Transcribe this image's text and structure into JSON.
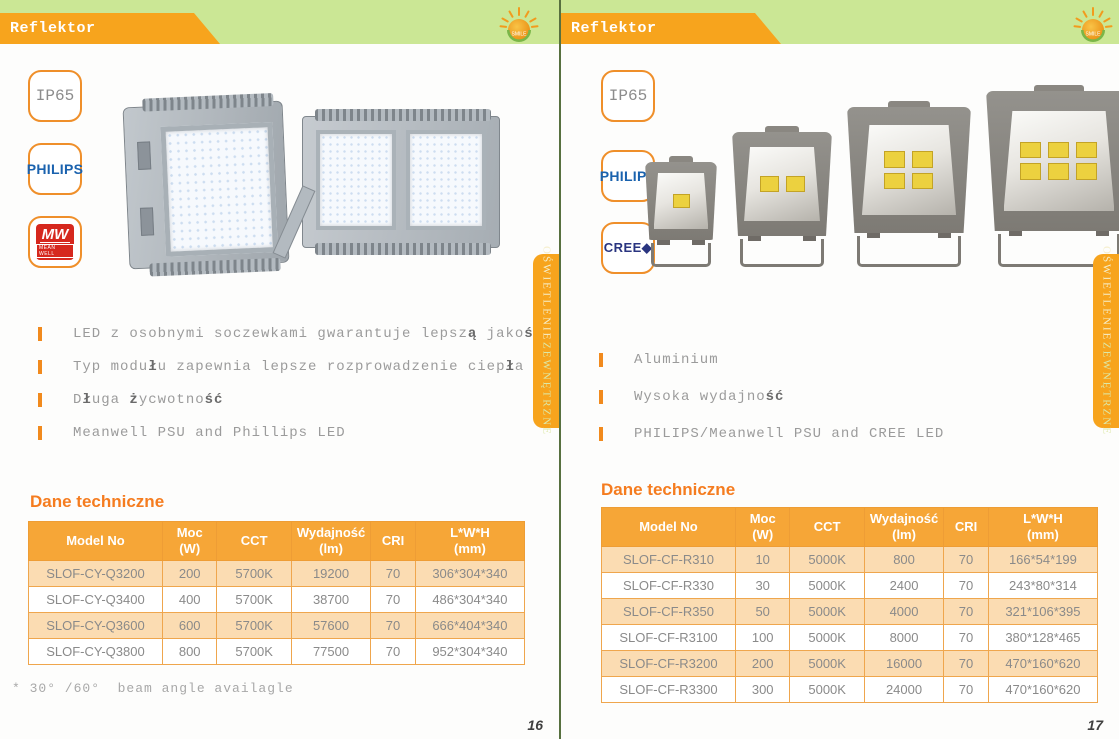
{
  "colors": {
    "header_green": "#cbe795",
    "banner_orange": "#f7a41d",
    "table_header_orange": "#f6a637",
    "row_peach": "#fbdcb2",
    "accent_orange": "#f57c1f",
    "divider_green": "#57703f",
    "philips_blue": "#1a62ae",
    "meanwell_red": "#d6281e",
    "cree_navy": "#2a3580",
    "led_chip_yellow": "#ecd13f"
  },
  "pages": [
    {
      "header": {
        "title": "Reflektor",
        "logo_text": "SMILE"
      },
      "badges": {
        "ip": "IP65",
        "brand1": "PHILIPS",
        "brand2": "MW",
        "brand2_sub": "MEAN WELL"
      },
      "bullets": [
        "LED z osobnymi soczewkami gwarantuje lepszą jakość",
        "Typ modułu zapewnia lepsze rozprowadzenie ciepła",
        "Długa życwotność",
        "Meanwell PSU and Phillips LED"
      ],
      "section_title": "Dane techniczne",
      "table": {
        "headers": [
          [
            "Model No",
            ""
          ],
          [
            "Moc",
            "(W)"
          ],
          [
            "CCT",
            ""
          ],
          [
            "Wydajność",
            "(lm)"
          ],
          [
            "CRI",
            ""
          ],
          [
            "L*W*H",
            "(mm)"
          ]
        ],
        "rows": [
          [
            "SLOF-CY-Q3200",
            "200",
            "5700K",
            "19200",
            "70",
            "306*304*340"
          ],
          [
            "SLOF-CY-Q3400",
            "400",
            "5700K",
            "38700",
            "70",
            "486*304*340"
          ],
          [
            "SLOF-CY-Q3600",
            "600",
            "5700K",
            "57600",
            "70",
            "666*404*340"
          ],
          [
            "SLOF-CY-Q3800",
            "800",
            "5700K",
            "77500",
            "70",
            "952*304*340"
          ]
        ]
      },
      "note": "* 30° /60°  beam angle availagle",
      "page_number": "16",
      "side_tab": {
        "line1": "OŚWIETLENIE",
        "line2": "ZEWNĘTRZNE"
      }
    },
    {
      "header": {
        "title": "Reflektor",
        "logo_text": "SMILE"
      },
      "badges": {
        "ip": "IP65",
        "brand1": "PHILIPS",
        "brand2": "CREE◆"
      },
      "bullets": [
        "Aluminium",
        "Wysoka wydajność",
        "PHILIPS/Meanwell PSU and CREE LED"
      ],
      "section_title": "Dane techniczne",
      "table": {
        "headers": [
          [
            "Model No",
            ""
          ],
          [
            "Moc",
            "(W)"
          ],
          [
            "CCT",
            ""
          ],
          [
            "Wydajność",
            "(lm)"
          ],
          [
            "CRI",
            ""
          ],
          [
            "L*W*H",
            "(mm)"
          ]
        ],
        "rows": [
          [
            "SLOF-CF-R310",
            "10",
            "5000K",
            "800",
            "70",
            "166*54*199"
          ],
          [
            "SLOF-CF-R330",
            "30",
            "5000K",
            "2400",
            "70",
            "243*80*314"
          ],
          [
            "SLOF-CF-R350",
            "50",
            "5000K",
            "4000",
            "70",
            "321*106*395"
          ],
          [
            "SLOF-CF-R3100",
            "100",
            "5000K",
            "8000",
            "70",
            "380*128*465"
          ],
          [
            "SLOF-CF-R3200",
            "200",
            "5000K",
            "16000",
            "70",
            "470*160*620"
          ],
          [
            "SLOF-CF-R3300",
            "300",
            "5000K",
            "24000",
            "70",
            "470*160*620"
          ]
        ]
      },
      "page_number": "17",
      "side_tab": {
        "line1": "OŚWIETLENIE",
        "line2": "ZEWNĘTRZNE"
      }
    }
  ]
}
